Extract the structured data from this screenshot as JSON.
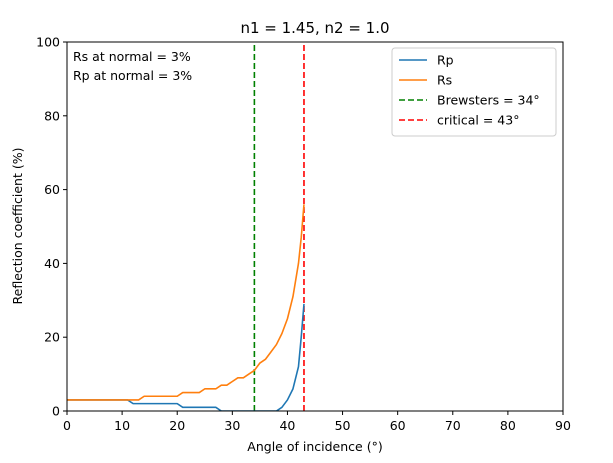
{
  "chart_data": {
    "type": "line",
    "title": "n1 = 1.45, n2 = 1.0",
    "xlabel": "Angle of incidence (°)",
    "ylabel": "Reflection coefficient (%)",
    "xlim": [
      0,
      90
    ],
    "ylim": [
      0,
      100
    ],
    "xticks": [
      "0",
      "10",
      "20",
      "30",
      "40",
      "50",
      "60",
      "70",
      "80",
      "90"
    ],
    "yticks": [
      "0",
      "20",
      "40",
      "60",
      "80",
      "100"
    ],
    "grid": false,
    "legend_position": "top-right",
    "annotations": [
      "Rs at normal = 3%",
      "Rp at normal = 3%"
    ],
    "series": [
      {
        "name": "Rp",
        "color": "#1f77b4",
        "style": "solid",
        "x": [
          0,
          11,
          12,
          13,
          19,
          20,
          21,
          26,
          27,
          28,
          34,
          35,
          36,
          37,
          38,
          39,
          40,
          41,
          42,
          42.5,
          43
        ],
        "y": [
          3,
          3,
          2,
          2,
          2,
          2,
          1,
          1,
          1,
          0,
          0,
          0,
          0,
          0,
          0,
          1,
          3,
          6,
          12,
          20,
          29
        ]
      },
      {
        "name": "Rs",
        "color": "#ff7f0e",
        "style": "solid",
        "x": [
          0,
          12,
          13,
          14,
          20,
          21,
          24,
          25,
          27,
          28,
          29,
          30,
          31,
          32,
          33,
          34,
          35,
          36,
          37,
          38,
          39,
          40,
          41,
          42,
          42.5,
          43
        ],
        "y": [
          3,
          3,
          3,
          4,
          4,
          5,
          5,
          6,
          6,
          7,
          7,
          8,
          9,
          9,
          10,
          11,
          13,
          14,
          16,
          18,
          21,
          25,
          31,
          40,
          47,
          56
        ]
      },
      {
        "name": "Brewsters = 34°",
        "color": "#008000",
        "style": "dashed",
        "x": [
          34,
          34
        ],
        "y": [
          0,
          100
        ]
      },
      {
        "name": "critical = 43°",
        "color": "#ff0000",
        "style": "dashed",
        "x": [
          43,
          43
        ],
        "y": [
          0,
          100
        ]
      }
    ]
  }
}
